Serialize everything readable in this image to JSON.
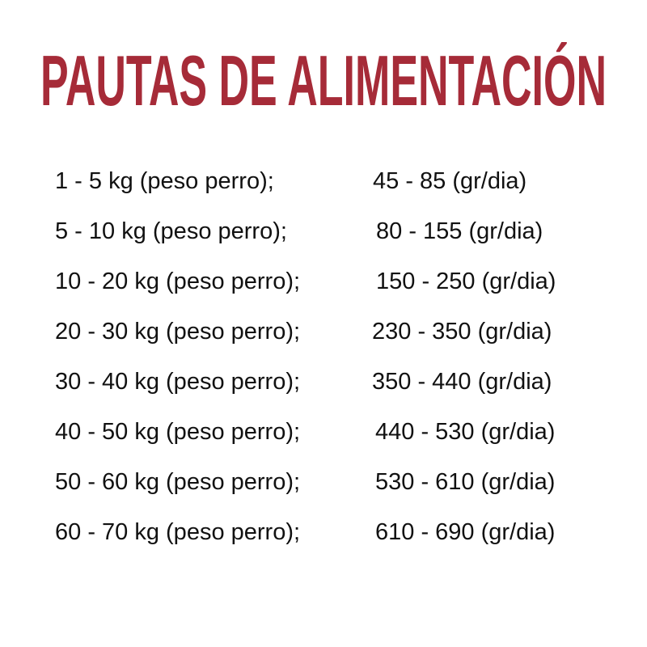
{
  "title": "PAUTAS DE ALIMENTACIÓN",
  "accent_color": "#a62b38",
  "rows": [
    {
      "weight": "1 - 5 kg (peso perro);",
      "food": "45 - 85 (gr/dia)"
    },
    {
      "weight": "5 - 10 kg (peso perro);",
      "food": "80 - 155 (gr/dia)"
    },
    {
      "weight": "10 - 20 kg (peso perro);",
      "food": "150 - 250 (gr/dia)"
    },
    {
      "weight": "20 - 30 kg (peso perro);",
      "food": "230 - 350 (gr/dia)"
    },
    {
      "weight": "30 - 40 kg (peso perro);",
      "food": "350 - 440 (gr/dia)"
    },
    {
      "weight": "40 - 50 kg (peso perro);",
      "food": "440 - 530 (gr/dia)"
    },
    {
      "weight": "50 - 60 kg (peso perro);",
      "food": "530 - 610 (gr/dia)"
    },
    {
      "weight": "60 - 70 kg (peso perro);",
      "food": "610 - 690 (gr/dia)"
    }
  ]
}
